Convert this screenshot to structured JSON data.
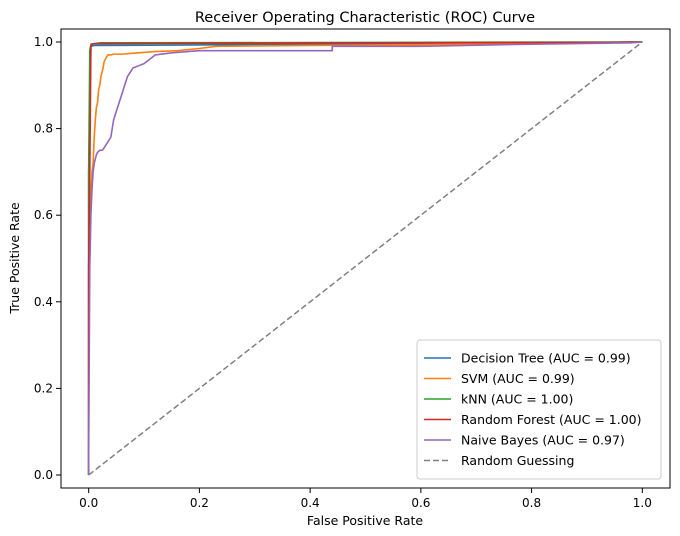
{
  "chart_data": {
    "type": "line",
    "title": "Receiver Operating Characteristic (ROC) Curve",
    "xlabel": "False Positive Rate",
    "ylabel": "True Positive Rate",
    "xlim": [
      -0.05,
      1.05
    ],
    "ylim": [
      -0.03,
      1.03
    ],
    "xticks": [
      0.0,
      0.2,
      0.4,
      0.6,
      0.8,
      1.0
    ],
    "yticks": [
      0.0,
      0.2,
      0.4,
      0.6,
      0.8,
      1.0
    ],
    "xtick_labels": [
      "0.0",
      "0.2",
      "0.4",
      "0.6",
      "0.8",
      "1.0"
    ],
    "ytick_labels": [
      "0.0",
      "0.2",
      "0.4",
      "0.6",
      "0.8",
      "1.0"
    ],
    "grid": false,
    "legend_position": "lower-right",
    "series": [
      {
        "name": "Decision Tree (AUC = 0.99)",
        "color": "#1f77b4",
        "style": "solid",
        "x": [
          0,
          0.0,
          0.004,
          0.01,
          0.6,
          1.0
        ],
        "y": [
          0,
          0.7,
          0.99,
          0.992,
          0.996,
          1.0
        ]
      },
      {
        "name": "SVM (AUC = 0.99)",
        "color": "#ff7f0e",
        "style": "solid",
        "x": [
          0,
          0.0,
          0.004,
          0.006,
          0.008,
          0.01,
          0.012,
          0.014,
          0.016,
          0.018,
          0.02,
          0.022,
          0.024,
          0.026,
          0.028,
          0.03,
          0.032,
          0.035,
          0.04,
          0.045,
          0.06,
          0.09,
          0.12,
          0.16,
          0.2,
          0.23,
          0.4,
          0.7,
          1.0
        ],
        "y": [
          0,
          0.48,
          0.65,
          0.7,
          0.72,
          0.78,
          0.82,
          0.85,
          0.86,
          0.89,
          0.9,
          0.92,
          0.93,
          0.94,
          0.955,
          0.96,
          0.965,
          0.97,
          0.97,
          0.972,
          0.972,
          0.975,
          0.978,
          0.98,
          0.985,
          0.99,
          0.992,
          0.995,
          1.0
        ]
      },
      {
        "name": "kNN (AUC = 1.00)",
        "color": "#2ca02c",
        "style": "solid",
        "x": [
          0,
          0.0,
          0.002,
          0.004,
          0.02,
          1.0
        ],
        "y": [
          0,
          0.7,
          0.98,
          0.995,
          0.998,
          1.0
        ]
      },
      {
        "name": "Random Forest (AUC = 1.00)",
        "color": "#d62728",
        "style": "solid",
        "x": [
          0,
          0.0,
          0.002,
          0.004,
          0.006,
          0.01,
          0.2,
          0.5,
          0.95,
          1.0
        ],
        "y": [
          0,
          0.48,
          0.7,
          0.99,
          0.995,
          0.996,
          0.997,
          0.998,
          0.999,
          1.0
        ]
      },
      {
        "name": "Naive Bayes (AUC = 0.97)",
        "color": "#9467bd",
        "style": "solid",
        "x": [
          0,
          0.0,
          0.002,
          0.004,
          0.006,
          0.008,
          0.01,
          0.012,
          0.014,
          0.016,
          0.02,
          0.025,
          0.03,
          0.035,
          0.04,
          0.045,
          0.05,
          0.055,
          0.06,
          0.065,
          0.07,
          0.075,
          0.08,
          0.09,
          0.1,
          0.12,
          0.15,
          0.2,
          0.3,
          0.44,
          0.44,
          0.6,
          0.8,
          0.98,
          1.0
        ],
        "y": [
          0,
          0.05,
          0.48,
          0.6,
          0.66,
          0.7,
          0.72,
          0.73,
          0.74,
          0.745,
          0.75,
          0.75,
          0.76,
          0.77,
          0.78,
          0.82,
          0.84,
          0.86,
          0.88,
          0.9,
          0.92,
          0.93,
          0.94,
          0.945,
          0.95,
          0.97,
          0.975,
          0.98,
          0.98,
          0.98,
          0.99,
          0.99,
          0.995,
          0.998,
          1.0
        ]
      },
      {
        "name": "Random Guessing",
        "color": "#808080",
        "style": "dashed",
        "x": [
          0,
          1
        ],
        "y": [
          0,
          1
        ]
      }
    ]
  }
}
